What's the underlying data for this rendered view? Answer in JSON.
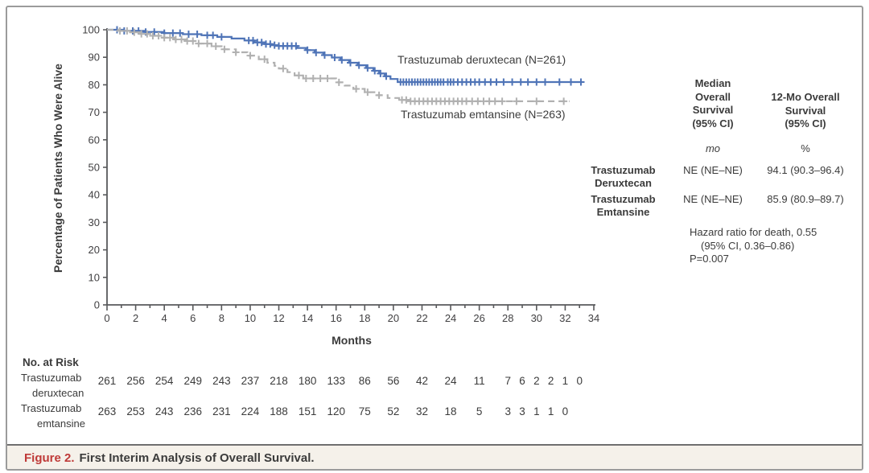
{
  "figure": {
    "caption_label": "Figure 2.",
    "caption_text": "First Interim Analysis of Overall Survival."
  },
  "chart_data": {
    "type": "line",
    "subtype": "kaplan-meier-step",
    "title": "",
    "xlabel": "Months",
    "ylabel": "Percentage of Patients Who Were Alive",
    "xlim": [
      0,
      34
    ],
    "ylim": [
      0,
      100
    ],
    "xtick_major": 2,
    "xtick_minor": 1,
    "ytick": 10,
    "grid": false,
    "axis_color": "#58595b",
    "series": [
      {
        "name": "trastuzumab-deruxtecan",
        "label": "Trastuzumab deruxtecan (N=261)",
        "n": 261,
        "color": "#4f74b7",
        "dashed": false,
        "steps": [
          [
            0,
            100
          ],
          [
            1.1,
            99.6
          ],
          [
            2.6,
            99.2
          ],
          [
            4.0,
            98.8
          ],
          [
            5.3,
            98.4
          ],
          [
            6.6,
            98.0
          ],
          [
            7.7,
            97.4
          ],
          [
            8.7,
            96.8
          ],
          [
            9.6,
            96.1
          ],
          [
            10.3,
            95.4
          ],
          [
            11.0,
            94.8
          ],
          [
            11.5,
            94.4
          ],
          [
            12.0,
            94.1
          ],
          [
            13.3,
            93.4
          ],
          [
            13.9,
            92.6
          ],
          [
            14.5,
            91.7
          ],
          [
            15.1,
            90.8
          ],
          [
            15.7,
            89.9
          ],
          [
            16.3,
            89.0
          ],
          [
            16.9,
            88.0
          ],
          [
            17.5,
            87.1
          ],
          [
            18.1,
            86.1
          ],
          [
            18.6,
            85.1
          ],
          [
            19.0,
            84.1
          ],
          [
            19.4,
            83.1
          ],
          [
            19.8,
            82.1
          ],
          [
            20.3,
            81.0
          ],
          [
            33.2,
            81.0
          ]
        ],
        "censor_months": [
          0.7,
          1.2,
          1.8,
          2.2,
          2.7,
          3.3,
          4.0,
          4.6,
          5.1,
          5.7,
          6.3,
          7.0,
          7.4,
          8.0,
          9.9,
          10.2,
          10.5,
          10.8,
          11.1,
          11.4,
          11.7,
          12.0,
          12.3,
          12.6,
          12.9,
          13.2,
          14.0,
          14.6,
          15.2,
          15.9,
          16.4,
          17.0,
          17.6,
          18.2,
          18.7,
          19.1,
          19.5,
          20.5,
          20.7,
          20.9,
          21.1,
          21.3,
          21.5,
          21.7,
          21.9,
          22.1,
          22.3,
          22.5,
          22.7,
          22.9,
          23.1,
          23.3,
          23.5,
          23.8,
          24.0,
          24.2,
          24.5,
          24.8,
          25.1,
          25.4,
          25.7,
          26.0,
          26.4,
          26.8,
          27.2,
          27.7,
          28.3,
          28.9,
          29.4,
          30.0,
          30.6,
          31.6,
          32.4,
          33.1
        ]
      },
      {
        "name": "trastuzumab-emtansine",
        "label": "Trastuzumab emtansine (N=263)",
        "n": 263,
        "color": "#b1b1b1",
        "dashed": true,
        "steps": [
          [
            0,
            100
          ],
          [
            0.9,
            99.6
          ],
          [
            1.6,
            99.1
          ],
          [
            2.3,
            98.5
          ],
          [
            3.1,
            97.8
          ],
          [
            3.9,
            97.1
          ],
          [
            4.7,
            96.5
          ],
          [
            5.5,
            95.9
          ],
          [
            6.4,
            95.0
          ],
          [
            7.3,
            94.0
          ],
          [
            8.2,
            92.9
          ],
          [
            9.0,
            91.8
          ],
          [
            9.8,
            90.6
          ],
          [
            10.6,
            89.3
          ],
          [
            11.2,
            88.0
          ],
          [
            11.7,
            86.9
          ],
          [
            12.0,
            85.9
          ],
          [
            12.6,
            84.6
          ],
          [
            13.1,
            83.4
          ],
          [
            13.7,
            82.3
          ],
          [
            15.6,
            82.3
          ],
          [
            16.0,
            80.9
          ],
          [
            16.6,
            79.7
          ],
          [
            17.2,
            78.5
          ],
          [
            18.0,
            77.3
          ],
          [
            18.8,
            76.2
          ],
          [
            19.6,
            75.2
          ],
          [
            20.4,
            74.5
          ],
          [
            21.1,
            74.0
          ],
          [
            32.3,
            74.0
          ]
        ],
        "censor_months": [
          0.9,
          1.4,
          1.9,
          2.4,
          2.8,
          3.2,
          3.6,
          4.0,
          4.4,
          4.8,
          5.2,
          5.6,
          6.0,
          6.4,
          7.0,
          7.6,
          8.2,
          9.0,
          10.0,
          11.0,
          12.3,
          13.4,
          13.9,
          14.4,
          14.9,
          15.4,
          16.2,
          17.4,
          18.2,
          19.0,
          20.6,
          20.9,
          21.2,
          21.5,
          21.8,
          22.1,
          22.4,
          22.7,
          23.0,
          23.3,
          23.6,
          23.9,
          24.2,
          24.5,
          24.8,
          25.1,
          25.5,
          25.9,
          26.3,
          26.7,
          27.1,
          27.6,
          28.6,
          30.0,
          31.9
        ]
      }
    ]
  },
  "risk_table": {
    "title": "No. at Risk",
    "rows": [
      {
        "label_line1": "Trastuzumab",
        "label_line2": "deruxtecan",
        "months": [
          0,
          2,
          4,
          6,
          8,
          10,
          12,
          14,
          16,
          18,
          20,
          22,
          24,
          26,
          28,
          29,
          30,
          31,
          32,
          33
        ],
        "values": [
          261,
          256,
          254,
          249,
          243,
          237,
          218,
          180,
          133,
          86,
          56,
          42,
          24,
          11,
          7,
          6,
          2,
          2,
          1,
          0
        ]
      },
      {
        "label_line1": "Trastuzumab",
        "label_line2": "emtansine",
        "months": [
          0,
          2,
          4,
          6,
          8,
          10,
          12,
          14,
          16,
          18,
          20,
          22,
          24,
          26,
          28,
          29,
          30,
          31,
          32
        ],
        "values": [
          263,
          253,
          243,
          236,
          231,
          224,
          188,
          151,
          120,
          75,
          52,
          32,
          18,
          5,
          3,
          3,
          1,
          1,
          0
        ]
      }
    ]
  },
  "stats_table": {
    "col1_header": "Median\nOverall\nSurvival\n(95% CI)",
    "col1_unit": "mo",
    "col2_header": "12-Mo Overall\nSurvival\n(95% CI)",
    "col2_unit": "%",
    "rows": [
      {
        "label": "Trastuzumab\nDeruxtecan",
        "median": "NE (NE–NE)",
        "twelve_mo": "94.1 (90.3–96.4)"
      },
      {
        "label": "Trastuzumab\nEmtansine",
        "median": "NE (NE–NE)",
        "twelve_mo": "85.9 (80.9–89.7)"
      }
    ]
  },
  "hazard": {
    "line1": "Hazard ratio for death, 0.55",
    "line2": "(95% CI, 0.36–0.86)",
    "line3": "P=0.007"
  }
}
